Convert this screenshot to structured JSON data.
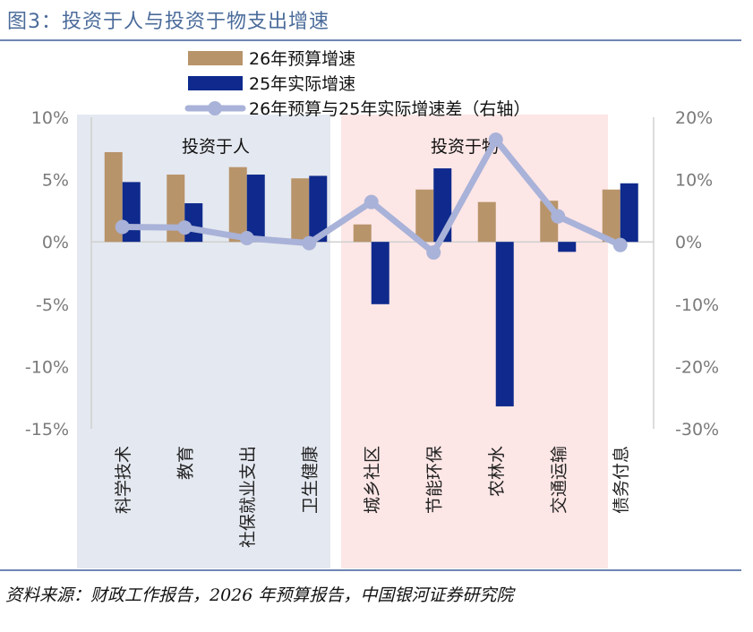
{
  "title": "图3：投资于人与投资于物支出增速",
  "source": "资料来源：财政工作报告，2026 年预算报告，中国银河证券研究院",
  "colors": {
    "budget": "#b8946a",
    "actual": "#0f2a8c",
    "diff": "#a9b2d8",
    "panel_people": "#e4e8f0",
    "panel_things": "#fde6e6",
    "rule": "#6f86b3",
    "axis_text": "#7a7a7a"
  },
  "chart_data": {
    "type": "bar",
    "categories": [
      "科学技术",
      "教育",
      "社保就业支出",
      "卫生健康",
      "城乡社区",
      "节能环保",
      "农林水",
      "交通运输",
      "债务付息"
    ],
    "series": [
      {
        "name": "26年预算增速",
        "kind": "bar",
        "axis": "left",
        "values": [
          7.2,
          5.4,
          6.0,
          5.1,
          1.4,
          4.2,
          3.2,
          3.3,
          4.2
        ]
      },
      {
        "name": "25年实际增速",
        "kind": "bar",
        "axis": "left",
        "values": [
          4.8,
          3.1,
          5.4,
          5.3,
          -5.0,
          5.9,
          -13.2,
          -0.8,
          4.7
        ]
      },
      {
        "name": "26年预算与25年实际增速差（右轴）",
        "kind": "line",
        "axis": "right",
        "values": [
          2.4,
          2.3,
          0.6,
          -0.2,
          6.4,
          -1.7,
          16.4,
          4.1,
          -0.5
        ]
      }
    ],
    "ylim_left": [
      -15,
      10
    ],
    "ylim_right": [
      -30,
      20
    ],
    "yticks_left": [
      "10%",
      "5%",
      "0%",
      "-5%",
      "-10%",
      "-15%"
    ],
    "yticks_right": [
      "20%",
      "10%",
      "0%",
      "-10%",
      "-20%",
      "-30%"
    ],
    "ytick_values_left": [
      10,
      5,
      0,
      -5,
      -10,
      -15
    ],
    "ytick_values_right": [
      20,
      10,
      0,
      -10,
      -20,
      -30
    ],
    "groups": [
      {
        "label": "投资于人",
        "from": 0,
        "to": 3
      },
      {
        "label": "投资于物",
        "from": 4,
        "to": 7
      }
    ],
    "legend_position": "top-center"
  }
}
